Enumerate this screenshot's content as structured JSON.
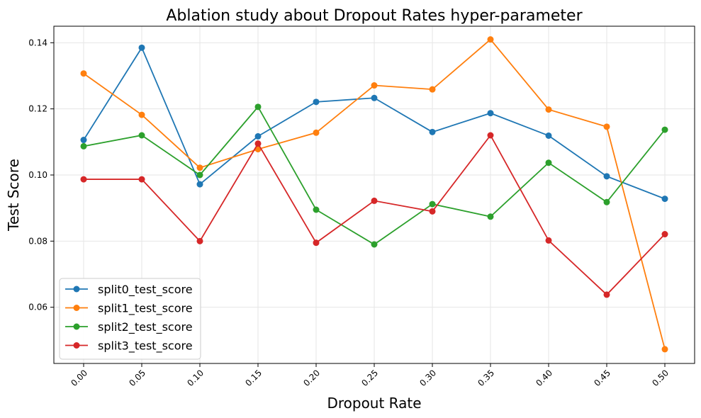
{
  "chart_data": {
    "type": "line",
    "title": "Ablation study about Dropout Rates hyper-parameter",
    "xlabel": "Dropout Rate",
    "ylabel": "Test Score",
    "x": [
      "0.00",
      "0.05",
      "0.10",
      "0.15",
      "0.20",
      "0.25",
      "0.30",
      "0.35",
      "0.40",
      "0.45",
      "0.50"
    ],
    "y_ticks": [
      "0.06",
      "0.08",
      "0.10",
      "0.12",
      "0.14"
    ],
    "ylim": [
      0.043,
      0.145
    ],
    "grid": true,
    "legend_position": "lower-left",
    "series": [
      {
        "name": "split0_test_score",
        "color": "#1f77b4",
        "values": [
          0.1106,
          0.1385,
          0.0972,
          0.1117,
          0.1221,
          0.1233,
          0.113,
          0.1187,
          0.1119,
          0.0996,
          0.0928
        ]
      },
      {
        "name": "split1_test_score",
        "color": "#ff7f0e",
        "values": [
          0.1307,
          0.1182,
          0.1022,
          0.1078,
          0.1128,
          0.1271,
          0.1259,
          0.141,
          0.1198,
          0.1146,
          0.0473
        ]
      },
      {
        "name": "split2_test_score",
        "color": "#2ca02c",
        "values": [
          0.1087,
          0.112,
          0.1,
          0.1206,
          0.0895,
          0.079,
          0.0912,
          0.0874,
          0.1037,
          0.0918,
          0.1137
        ]
      },
      {
        "name": "split3_test_score",
        "color": "#d62728",
        "values": [
          0.0987,
          0.0987,
          0.08,
          0.1095,
          0.0795,
          0.0922,
          0.089,
          0.112,
          0.0802,
          0.0638,
          0.0821
        ]
      }
    ]
  }
}
